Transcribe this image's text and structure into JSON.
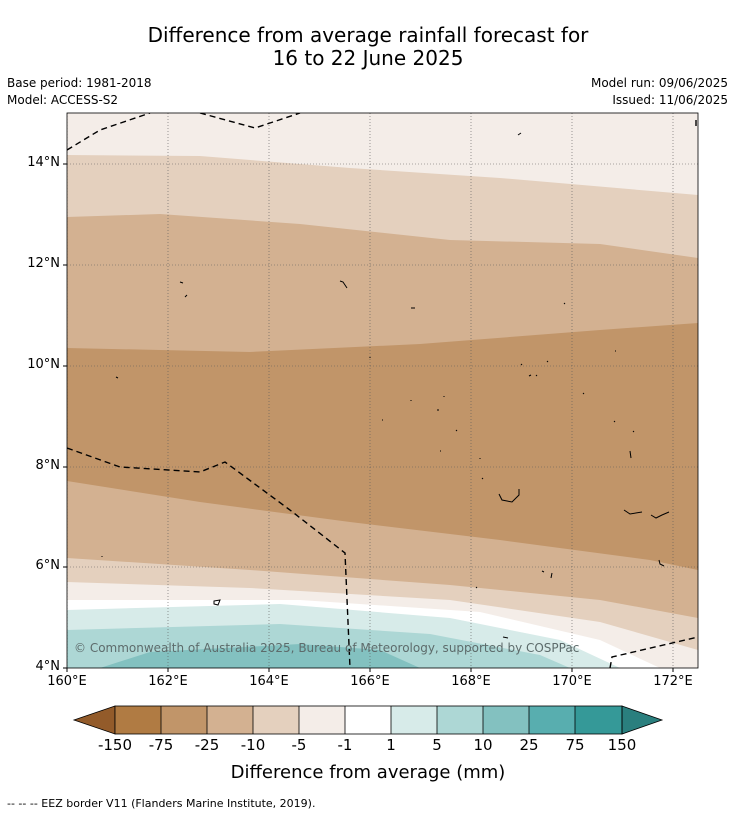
{
  "title_line1": "Difference from average rainfall forecast for",
  "title_line2": "16 to 22 June 2025",
  "base_period": "Base period: 1981-2018",
  "model": "Model: ACCESS-S2",
  "model_run": "Model run: 09/06/2025",
  "issued": "Issued: 11/06/2025",
  "lat_labels": [
    "14°N",
    "12°N",
    "10°N",
    "8°N",
    "6°N",
    "4°N"
  ],
  "lon_labels": [
    "160°E",
    "162°E",
    "164°E",
    "166°E",
    "168°E",
    "170°E",
    "172°E"
  ],
  "copyright": "© Commonwealth of Australia 2025, Bureau of Meteorology, supported by COSPPac",
  "colorbar": {
    "label": "Difference from average (mm)",
    "ticks": [
      "-150",
      "-75",
      "-25",
      "-10",
      "-5",
      "-1",
      "1",
      "5",
      "10",
      "25",
      "75",
      "150"
    ],
    "colors": {
      "lt_-150": "#935b2a",
      "-150_-75": "#b07b43",
      "-75_-25": "#c19569",
      "-25_-10": "#d3b191",
      "-10_-5": "#e4d0be",
      "-5_-1": "#f4ede8",
      "-1_1": "#ffffff",
      "1_5": "#d7ebe9",
      "5_10": "#add7d5",
      "10_25": "#83c1c0",
      "25_75": "#58aeaf",
      "75_150": "#359998",
      "gt_150": "#2a7f7e"
    }
  },
  "footnote": "--  --  -- EEZ border V11 (Flanders Marine Institute, 2019)."
}
